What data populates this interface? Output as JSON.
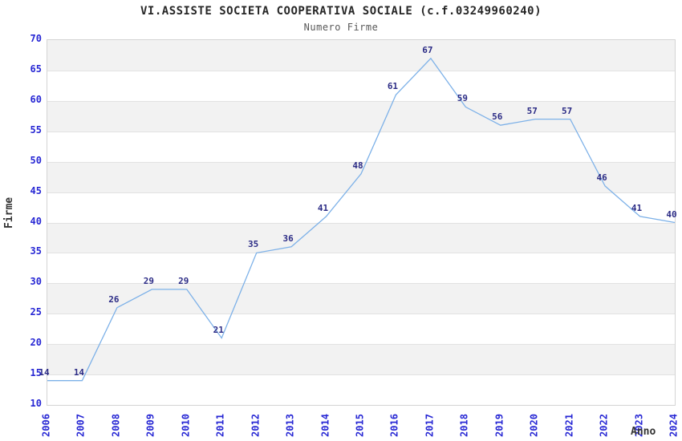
{
  "chart_data": {
    "type": "line",
    "title": "VI.ASSISTE SOCIETA COOPERATIVA SOCIALE (c.f.03249960240)",
    "subtitle": "Numero Firme",
    "xlabel": "Anno",
    "ylabel": "Firme",
    "x": [
      "2006",
      "2007",
      "2008",
      "2009",
      "2010",
      "2011",
      "2012",
      "2013",
      "2014",
      "2015",
      "2016",
      "2017",
      "2018",
      "2019",
      "2020",
      "2021",
      "2022",
      "2023",
      "2024"
    ],
    "series": [
      {
        "name": "Numero Firme",
        "values": [
          14,
          14,
          26,
          29,
          29,
          21,
          35,
          36,
          41,
          48,
          61,
          67,
          59,
          56,
          57,
          57,
          46,
          41,
          40
        ]
      }
    ],
    "ylim": [
      10,
      70
    ],
    "ytick_step": 5,
    "data_labels_visible": true,
    "legend": "none",
    "grid": "horizontal-bands"
  },
  "colors": {
    "line": "#7db1e8",
    "band": "#f2f2f2",
    "gridline": "#e2e2e2",
    "plot_border": "#d4d4d4",
    "tick_label": "#2727d4",
    "data_label": "#2b2b85",
    "title": "#262626",
    "subtitle": "#595959",
    "axis_title": "#333333"
  }
}
